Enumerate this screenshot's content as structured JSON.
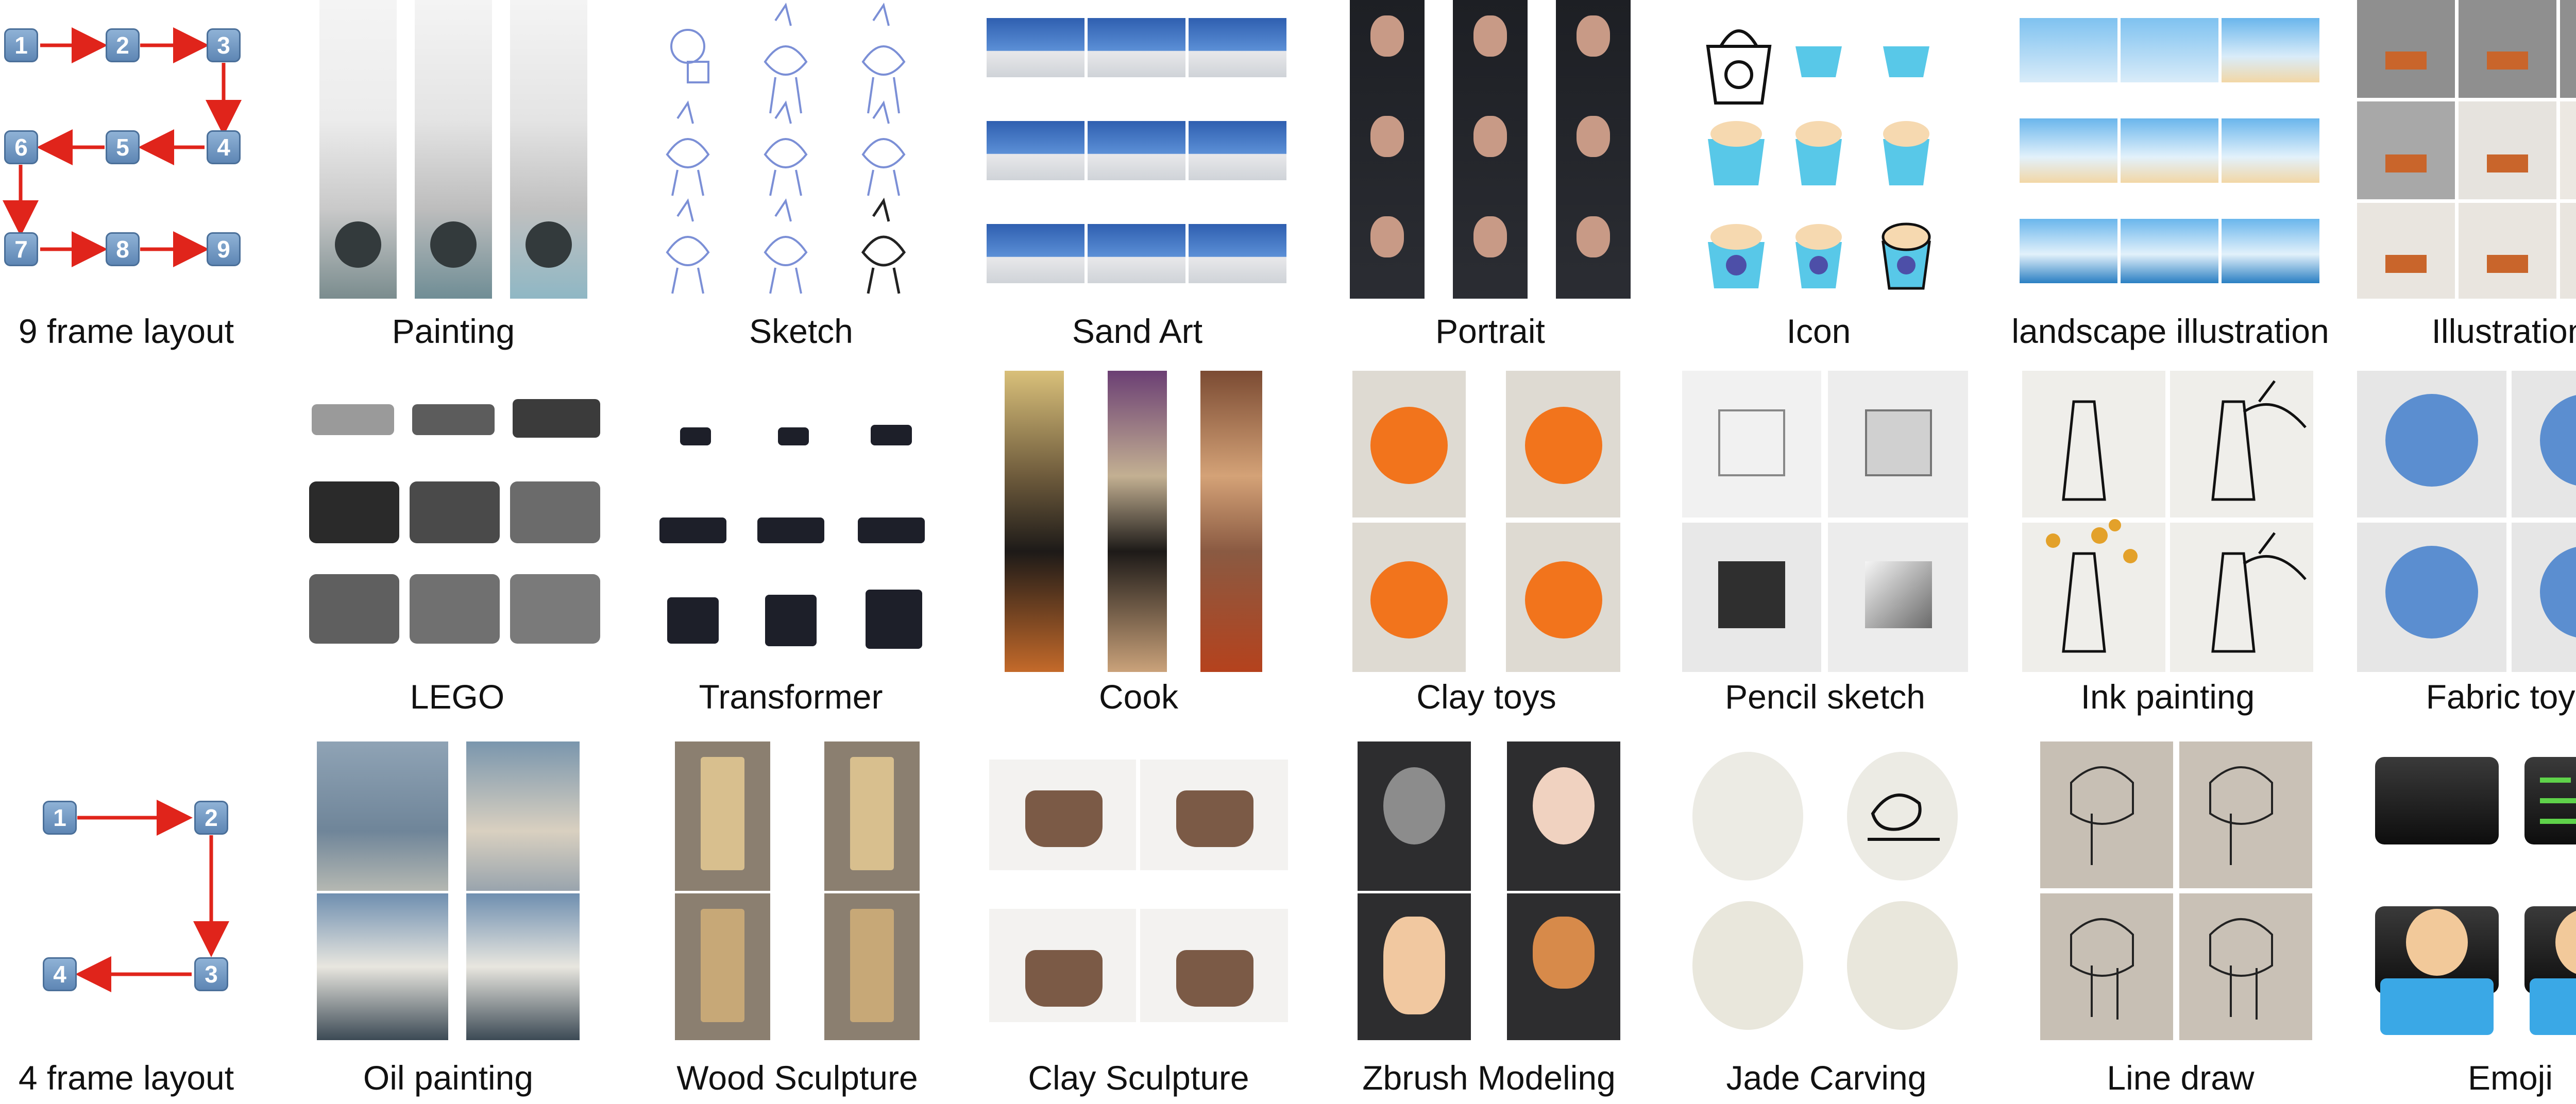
{
  "layouts": {
    "nine_frame": {
      "caption": "9 frame layout",
      "frames": [
        "1",
        "2",
        "3",
        "4",
        "5",
        "6",
        "7",
        "8",
        "9"
      ]
    },
    "four_frame": {
      "caption": "4 frame layout",
      "frames": [
        "1",
        "2",
        "3",
        "4"
      ]
    }
  },
  "categories": {
    "row1": [
      "Painting",
      "Sketch",
      "Sand Art",
      "Portrait",
      "Icon",
      "landscape illustration",
      "Illustration"
    ],
    "row2": [
      "LEGO",
      "Transformer",
      "Cook",
      "Clay toys",
      "Pencil sketch",
      "Ink painting",
      "Fabric toys"
    ],
    "row3": [
      "Oil painting",
      "Wood Sculpture",
      "Clay Sculpture",
      "Zbrush Modeling",
      "Jade Carving",
      "Line draw",
      "Emoji"
    ]
  },
  "colors": {
    "arrow": "#e0241b",
    "badge": "#6a90bd"
  }
}
